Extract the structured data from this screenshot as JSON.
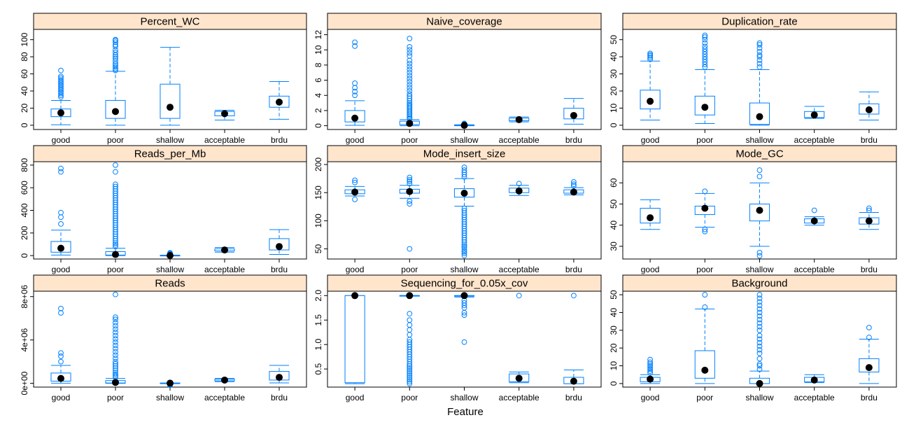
{
  "xlabel": "Feature",
  "colors": {
    "box": "#0080ff",
    "strip": "#ffe5cc",
    "median_dot": "#000000"
  },
  "chart_data": [
    {
      "type": "box",
      "title": "Percent_WC",
      "categories": [
        "good",
        "poor",
        "shallow",
        "acceptable",
        "brdu"
      ],
      "ylim": [
        -5,
        112
      ],
      "yticks": [
        "0",
        "20",
        "40",
        "60",
        "80",
        "100"
      ],
      "ytick_values": [
        0,
        20,
        40,
        60,
        80,
        100
      ],
      "boxes": [
        {
          "whislo": 0.5,
          "q1": 10,
          "med": 14.5,
          "q3": 19,
          "whishi": 29,
          "outliers": [
            33,
            35,
            37,
            39,
            41,
            43,
            45,
            47,
            49,
            51,
            53,
            55,
            57,
            64
          ]
        },
        {
          "whislo": 0,
          "q1": 8,
          "med": 16,
          "q3": 29,
          "whishi": 63,
          "outliers": [
            64,
            66,
            68,
            70,
            72,
            75,
            78,
            80,
            82,
            85,
            88,
            92,
            94,
            97,
            99,
            100
          ]
        },
        {
          "whislo": 0,
          "q1": 8,
          "med": 21,
          "q3": 48,
          "whishi": 91,
          "outliers": []
        },
        {
          "whislo": 6,
          "q1": 11,
          "med": 13.5,
          "q3": 16,
          "whishi": 17.5,
          "outliers": []
        },
        {
          "whislo": 7,
          "q1": 21,
          "med": 27,
          "q3": 34,
          "whishi": 51,
          "outliers": []
        }
      ]
    },
    {
      "type": "box",
      "title": "Naive_coverage",
      "categories": [
        "good",
        "poor",
        "shallow",
        "acceptable",
        "brdu"
      ],
      "ylim": [
        -0.5,
        12.7
      ],
      "yticks": [
        "0",
        "2",
        "4",
        "6",
        "8",
        "10",
        "12"
      ],
      "ytick_values": [
        0,
        2,
        4,
        6,
        8,
        10,
        12
      ],
      "boxes": [
        {
          "whislo": 0.05,
          "q1": 0.5,
          "med": 1.0,
          "q3": 2.0,
          "whishi": 3.3,
          "outliers": [
            4.0,
            4.5,
            5.0,
            5.6,
            10.5,
            11.0
          ]
        },
        {
          "whislo": 0,
          "q1": 0.15,
          "med": 0.3,
          "q3": 0.6,
          "whishi": 0.8,
          "outliers": [
            0.9,
            1.0,
            1.2,
            1.4,
            1.6,
            1.8,
            2.0,
            2.2,
            2.4,
            2.6,
            2.8,
            3.0,
            3.3,
            3.6,
            3.9,
            4.2,
            4.6,
            5.0,
            5.4,
            5.8,
            6.2,
            6.6,
            7.0,
            7.4,
            7.8,
            8.2,
            8.6,
            9.2,
            9.6,
            10.0,
            10.4,
            11.5
          ]
        },
        {
          "whislo": 0,
          "q1": 0.02,
          "med": 0.05,
          "q3": 0.08,
          "whishi": 0.12,
          "outliers": [
            0.15,
            0.2,
            0.25,
            0.3
          ]
        },
        {
          "whislo": 0.5,
          "q1": 0.65,
          "med": 0.8,
          "q3": 1.0,
          "whishi": 1.15,
          "outliers": []
        },
        {
          "whislo": 0.2,
          "q1": 0.9,
          "med": 1.35,
          "q3": 2.3,
          "whishi": 3.6,
          "outliers": []
        }
      ]
    },
    {
      "type": "box",
      "title": "Duplication_rate",
      "categories": [
        "good",
        "poor",
        "shallow",
        "acceptable",
        "brdu"
      ],
      "ylim": [
        -2.5,
        56
      ],
      "yticks": [
        "0",
        "10",
        "20",
        "30",
        "40",
        "50"
      ],
      "ytick_values": [
        0,
        10,
        20,
        30,
        40,
        50
      ],
      "boxes": [
        {
          "whislo": 3,
          "q1": 9.5,
          "med": 14,
          "q3": 20.5,
          "whishi": 37.5,
          "outliers": [
            38.5,
            39.5,
            40.5,
            41.2,
            42
          ]
        },
        {
          "whislo": 1,
          "q1": 6,
          "med": 10.5,
          "q3": 17,
          "whishi": 32.5,
          "outliers": [
            34,
            35.5,
            37,
            38.5,
            40,
            41.5,
            43,
            44.5,
            46,
            48,
            50,
            51.5,
            52.5
          ]
        },
        {
          "whislo": 0,
          "q1": 0.5,
          "med": 5,
          "q3": 13,
          "whishi": 32.5,
          "outliers": [
            34,
            36,
            38,
            40,
            41,
            43,
            45,
            47,
            48
          ]
        },
        {
          "whislo": 4,
          "q1": 4.5,
          "med": 6,
          "q3": 8,
          "whishi": 11,
          "outliers": []
        },
        {
          "whislo": 3,
          "q1": 6.5,
          "med": 9,
          "q3": 12.5,
          "whishi": 19.5,
          "outliers": []
        }
      ]
    },
    {
      "type": "box",
      "title": "Reads_per_Mb",
      "categories": [
        "good",
        "poor",
        "shallow",
        "acceptable",
        "brdu"
      ],
      "ylim": [
        -30,
        830
      ],
      "yticks": [
        "0",
        "200",
        "400",
        "600",
        "800"
      ],
      "ytick_values": [
        0,
        200,
        400,
        600,
        800
      ],
      "boxes": [
        {
          "whislo": 5,
          "q1": 30,
          "med": 65,
          "q3": 125,
          "whishi": 225,
          "outliers": [
            280,
            340,
            380,
            740,
            770
          ]
        },
        {
          "whislo": 0,
          "q1": 5,
          "med": 10,
          "q3": 35,
          "whishi": 65,
          "outliers": [
            80,
            95,
            110,
            130,
            150,
            170,
            190,
            210,
            230,
            250,
            270,
            290,
            310,
            330,
            350,
            370,
            390,
            410,
            430,
            450,
            470,
            490,
            510,
            530,
            550,
            570,
            590,
            610,
            630,
            740,
            800
          ]
        },
        {
          "whislo": 0,
          "q1": 0,
          "med": 1,
          "q3": 2,
          "whishi": 4,
          "outliers": [
            6,
            10,
            15,
            20,
            25
          ]
        },
        {
          "whislo": 30,
          "q1": 42,
          "med": 50,
          "q3": 60,
          "whishi": 72,
          "outliers": []
        },
        {
          "whislo": 10,
          "q1": 50,
          "med": 80,
          "q3": 150,
          "whishi": 230,
          "outliers": []
        }
      ]
    },
    {
      "type": "box",
      "title": "Mode_insert_size",
      "categories": [
        "good",
        "poor",
        "shallow",
        "acceptable",
        "brdu"
      ],
      "ylim": [
        32,
        205
      ],
      "yticks": [
        "50",
        "100",
        "150",
        "200"
      ],
      "ytick_values": [
        50,
        100,
        150,
        200
      ],
      "boxes": [
        {
          "whislo": 144,
          "q1": 148,
          "med": 151,
          "q3": 155,
          "whishi": 161,
          "outliers": [
            138,
            168,
            172
          ]
        },
        {
          "whislo": 140,
          "q1": 149,
          "med": 152,
          "q3": 156,
          "whishi": 163,
          "outliers": [
            50,
            130,
            135,
            166,
            170,
            173,
            177
          ]
        },
        {
          "whislo": 126,
          "q1": 142,
          "med": 149,
          "q3": 157,
          "whishi": 175,
          "outliers": [
            38,
            42,
            45,
            48,
            52,
            55,
            58,
            62,
            66,
            70,
            74,
            78,
            82,
            86,
            90,
            94,
            98,
            102,
            106,
            110,
            114,
            118,
            122,
            178,
            182,
            186,
            190,
            195
          ]
        },
        {
          "whislo": 145,
          "q1": 150,
          "med": 153,
          "q3": 158,
          "whishi": 163,
          "outliers": [
            166
          ]
        },
        {
          "whislo": 146,
          "q1": 149,
          "med": 151,
          "q3": 155,
          "whishi": 159,
          "outliers": [
            162,
            165,
            169
          ]
        }
      ]
    },
    {
      "type": "box",
      "title": "Mode_GC",
      "categories": [
        "good",
        "poor",
        "shallow",
        "acceptable",
        "brdu"
      ],
      "ylim": [
        24,
        70
      ],
      "yticks": [
        "30",
        "40",
        "50",
        "60"
      ],
      "ytick_values": [
        30,
        40,
        50,
        60
      ],
      "boxes": [
        {
          "whislo": 38,
          "q1": 41,
          "med": 43.5,
          "q3": 48,
          "whishi": 52,
          "outliers": []
        },
        {
          "whislo": 39,
          "q1": 45,
          "med": 48,
          "q3": 49,
          "whishi": 55,
          "outliers": [
            37,
            38,
            56
          ]
        },
        {
          "whislo": 30,
          "q1": 42,
          "med": 47,
          "q3": 50,
          "whishi": 60,
          "outliers": [
            25.5,
            27,
            63,
            66
          ]
        },
        {
          "whislo": 40,
          "q1": 41,
          "med": 42,
          "q3": 43,
          "whishi": 44,
          "outliers": [
            47
          ]
        },
        {
          "whislo": 38,
          "q1": 40.5,
          "med": 42,
          "q3": 43.5,
          "whishi": 46,
          "outliers": [
            47,
            48
          ]
        }
      ]
    },
    {
      "type": "box",
      "title": "Reads",
      "categories": [
        "good",
        "poor",
        "shallow",
        "acceptable",
        "brdu"
      ],
      "ylim": [
        -350000,
        8500000
      ],
      "yticks": [
        "0e+00",
        "4e+06",
        "8e+06"
      ],
      "ytick_values": [
        0,
        4000000,
        8000000
      ],
      "boxes": [
        {
          "whislo": 10000,
          "q1": 200000,
          "med": 450000,
          "q3": 950000,
          "whishi": 1650000,
          "outliers": [
            2000000,
            2500000,
            2800000,
            6500000,
            6900000
          ]
        },
        {
          "whislo": 0,
          "q1": 30000,
          "med": 80000,
          "q3": 250000,
          "whishi": 450000,
          "outliers": [
            550000,
            700000,
            850000,
            1000000,
            1200000,
            1400000,
            1600000,
            1800000,
            2000000,
            2300000,
            2600000,
            2900000,
            3200000,
            3500000,
            3800000,
            4100000,
            4400000,
            4700000,
            5000000,
            5300000,
            5600000,
            5900000,
            6100000,
            8200000
          ]
        },
        {
          "whislo": 0,
          "q1": 5000,
          "med": 10000,
          "q3": 20000,
          "whishi": 30000,
          "outliers": [
            -60000,
            -120000,
            -180000
          ]
        },
        {
          "whislo": 150000,
          "q1": 230000,
          "med": 300000,
          "q3": 380000,
          "whishi": 450000,
          "outliers": []
        },
        {
          "whislo": 40000,
          "q1": 300000,
          "med": 550000,
          "q3": 1100000,
          "whishi": 1650000,
          "outliers": []
        }
      ]
    },
    {
      "type": "box",
      "title": "Sequencing_for_0.05x_cov",
      "categories": [
        "good",
        "poor",
        "shallow",
        "acceptable",
        "brdu"
      ],
      "ylim": [
        0.13,
        2.09
      ],
      "yticks": [
        "0.5",
        "1.0",
        "1.5",
        "2.0"
      ],
      "ytick_values": [
        0.5,
        1.0,
        1.5,
        2.0
      ],
      "boxes": [
        {
          "whislo": 0.2,
          "q1": 0.22,
          "med": 2.0,
          "q3": 2.0,
          "whishi": 2.0,
          "outliers": []
        },
        {
          "whislo": 2.0,
          "q1": 2.0,
          "med": 2.0,
          "q3": 2.0,
          "whishi": 2.0,
          "outliers": [
            0.2,
            0.24,
            0.28,
            0.32,
            0.36,
            0.4,
            0.44,
            0.48,
            0.52,
            0.56,
            0.6,
            0.65,
            0.7,
            0.75,
            0.8,
            0.85,
            0.9,
            0.95,
            1.0,
            1.05,
            1.1,
            1.2,
            1.3,
            1.4,
            1.5,
            1.63
          ]
        },
        {
          "whislo": 1.97,
          "q1": 1.99,
          "med": 2.0,
          "q3": 2.0,
          "whishi": 2.0,
          "outliers": [
            1.05,
            1.6,
            1.65,
            1.75,
            1.8,
            1.85,
            1.9
          ]
        },
        {
          "whislo": 0.22,
          "q1": 0.24,
          "med": 0.31,
          "q3": 0.4,
          "whishi": 0.44,
          "outliers": [
            2.0
          ]
        },
        {
          "whislo": 0.2,
          "q1": 0.2,
          "med": 0.25,
          "q3": 0.33,
          "whishi": 0.48,
          "outliers": [
            2.0
          ]
        }
      ]
    },
    {
      "type": "box",
      "title": "Background",
      "categories": [
        "good",
        "poor",
        "shallow",
        "acceptable",
        "brdu"
      ],
      "ylim": [
        -2,
        52
      ],
      "yticks": [
        "0",
        "10",
        "20",
        "30",
        "40",
        "50"
      ],
      "ytick_values": [
        0,
        10,
        20,
        30,
        40,
        50
      ],
      "boxes": [
        {
          "whislo": 0,
          "q1": 1,
          "med": 2.5,
          "q3": 3.5,
          "whishi": 5,
          "outliers": [
            6,
            7,
            8,
            9,
            10,
            11,
            12,
            13.5
          ]
        },
        {
          "whislo": 0,
          "q1": 3,
          "med": 7.5,
          "q3": 18.5,
          "whishi": 42,
          "outliers": [
            43,
            50
          ]
        },
        {
          "whislo": 0,
          "q1": 0,
          "med": 0,
          "q3": 3,
          "whishi": 7,
          "outliers": [
            8,
            10,
            11,
            14,
            17,
            19,
            21,
            23,
            25,
            27,
            30,
            32,
            34,
            36,
            38,
            40,
            42,
            44,
            46,
            48,
            50
          ]
        },
        {
          "whislo": 0.5,
          "q1": 1,
          "med": 2,
          "q3": 3.5,
          "whishi": 5,
          "outliers": []
        },
        {
          "whislo": 0,
          "q1": 6.5,
          "med": 9,
          "q3": 14,
          "whishi": 25,
          "outliers": [
            26,
            31.5
          ]
        }
      ]
    }
  ]
}
